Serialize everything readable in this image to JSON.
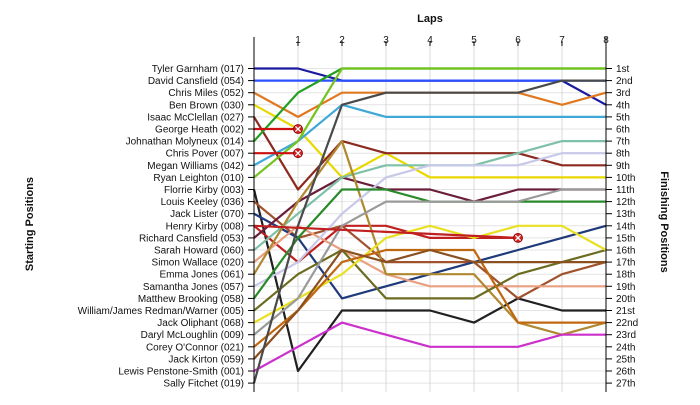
{
  "chart_data": {
    "type": "line",
    "title": "Laps",
    "ylabel_left": "Starting Positions",
    "ylabel_right": "Finishing Positions",
    "x": [
      0,
      1,
      2,
      3,
      4,
      5,
      6,
      7,
      8
    ],
    "x_tick_labels": [
      "1",
      "2",
      "3",
      "4",
      "5",
      "6",
      "7",
      "8"
    ],
    "finishing_labels": [
      "1st",
      "2nd",
      "3rd",
      "4th",
      "5th",
      "6th",
      "7th",
      "8th",
      "9th",
      "10th",
      "11th",
      "12th",
      "13th",
      "14th",
      "15th",
      "16th",
      "17th",
      "18th",
      "19th",
      "20th",
      "21st",
      "22nd",
      "23rd",
      "24th",
      "25th",
      "26th",
      "27th"
    ],
    "grid": true,
    "series": [
      {
        "name": "Tyler Garnham (017)",
        "color": "#1a1aa0",
        "values": [
          1,
          1,
          2,
          2,
          2,
          2,
          2,
          2,
          4
        ]
      },
      {
        "name": "David Cansfield (054)",
        "color": "#2a50ff",
        "values": [
          2,
          2,
          2,
          2,
          2,
          2,
          2,
          2,
          2
        ]
      },
      {
        "name": "Chris Miles (052)",
        "color": "#e07820",
        "values": [
          3,
          5,
          3,
          3,
          3,
          3,
          3,
          4,
          3
        ]
      },
      {
        "name": "Ben Brown (030)",
        "color": "#e8d800",
        "values": [
          4,
          6,
          10,
          8,
          10,
          10,
          10,
          10,
          10
        ]
      },
      {
        "name": "Isaac McClellan (027)",
        "color": "#8c2a20",
        "values": [
          5,
          11,
          7,
          8,
          8,
          8,
          8,
          9,
          9
        ]
      },
      {
        "name": "George Heath (002)",
        "color": "#cc1010",
        "values": [
          6,
          null,
          null,
          null,
          null,
          null,
          null,
          null,
          null
        ]
      },
      {
        "name": "Johnathan Molyneux (014)",
        "color": "#22a022",
        "values": [
          7,
          3,
          1,
          1,
          1,
          1,
          1,
          1,
          1
        ]
      },
      {
        "name": "Chris Pover (007)",
        "color": "#cc1010",
        "values": [
          8,
          null,
          null,
          null,
          null,
          null,
          null,
          null,
          null
        ]
      },
      {
        "name": "Megan Williams (042)",
        "color": "#40a8d8",
        "values": [
          9,
          7,
          4,
          5,
          5,
          5,
          5,
          5,
          5
        ]
      },
      {
        "name": "Ryan Leighton (010)",
        "color": "#74c420",
        "values": [
          10,
          7,
          1,
          1,
          1,
          1,
          1,
          1,
          1
        ]
      },
      {
        "name": "Florrie Kirby (003)",
        "color": "#202020",
        "values": [
          11,
          26,
          21,
          21,
          21,
          22,
          20,
          21,
          21
        ]
      },
      {
        "name": "Louis Keeley (036)",
        "color": "#a0522d",
        "values": [
          12,
          15,
          14,
          17,
          17,
          17,
          20,
          18,
          17
        ]
      },
      {
        "name": "Jack Lister (070)",
        "color": "#1f3a7a",
        "values": [
          13,
          15,
          20,
          19,
          18,
          17,
          16,
          15,
          14
        ]
      },
      {
        "name": "Henry Kirby (008)",
        "color": "#c02020",
        "values": [
          14,
          17,
          14,
          14,
          15,
          15,
          15,
          null,
          null
        ]
      },
      {
        "name": "Richard Cansfield (053)",
        "color": "#6a1e3c",
        "values": [
          15,
          12,
          10,
          11,
          11,
          12,
          11,
          11,
          11
        ]
      },
      {
        "name": "Sarah Howard (060)",
        "color": "#7ec0a8",
        "values": [
          16,
          13,
          10,
          9,
          9,
          9,
          8,
          7,
          7
        ]
      },
      {
        "name": "Simon Wallace (020)",
        "color": "#e8a080",
        "values": [
          17,
          14,
          16,
          18,
          19,
          19,
          19,
          19,
          19
        ]
      },
      {
        "name": "Emma Jones (061)",
        "color": "#b08830",
        "values": [
          18,
          12,
          7,
          18,
          18,
          18,
          22,
          23,
          22
        ]
      },
      {
        "name": "Samantha Jones (057)",
        "color": "#c8c8e8",
        "values": [
          19,
          17,
          13,
          10,
          9,
          9,
          9,
          8,
          8
        ]
      },
      {
        "name": "Matthew Brooking (058)",
        "color": "#2a8a2a",
        "values": [
          20,
          15,
          11,
          11,
          12,
          12,
          12,
          12,
          12
        ]
      },
      {
        "name": "William/James Redman/Warner (005)",
        "color": "#6c6c20",
        "values": [
          21,
          18,
          16,
          20,
          20,
          20,
          18,
          17,
          16
        ]
      },
      {
        "name": "Jack Oliphant (068)",
        "color": "#e8e020",
        "values": [
          22,
          20,
          18,
          15,
          14,
          15,
          14,
          14,
          16
        ]
      },
      {
        "name": "Daryl McLoughlin (009)",
        "color": "#9a9a9a",
        "values": [
          23,
          20,
          14,
          12,
          12,
          12,
          12,
          11,
          11
        ]
      },
      {
        "name": "Corey O'Connor (021)",
        "color": "#c06810",
        "values": [
          24,
          21,
          17,
          16,
          16,
          16,
          22,
          22,
          22
        ]
      },
      {
        "name": "Jack Kirton (059)",
        "color": "#8a5020",
        "values": [
          25,
          21,
          16,
          17,
          16,
          17,
          17,
          17,
          17
        ]
      },
      {
        "name": "Lewis Penstone-Smith (001)",
        "color": "#cc30cc",
        "values": [
          26,
          24,
          22,
          23,
          24,
          24,
          24,
          23,
          23
        ]
      },
      {
        "name": "Sally Fitchet (019)",
        "color": "#4a4a4a",
        "values": [
          27,
          14,
          4,
          3,
          3,
          3,
          3,
          2,
          2
        ]
      }
    ],
    "retirements": [
      {
        "series": "George Heath (002)",
        "x": 1,
        "position": 6
      },
      {
        "series": "Chris Pover (007)",
        "x": 1,
        "position": 8
      },
      {
        "series": "Henry Kirby (008)",
        "x": 6,
        "position": 15
      }
    ]
  }
}
